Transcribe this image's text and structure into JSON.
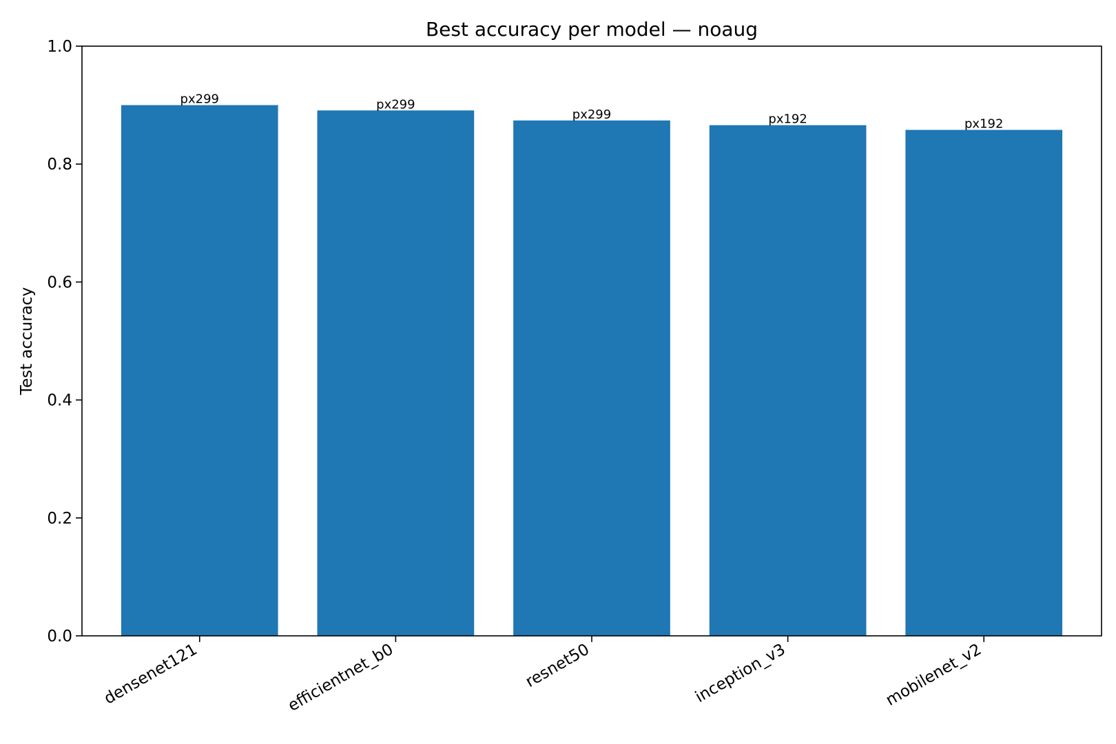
{
  "chart_data": {
    "type": "bar",
    "title": "Best accuracy per model — noaug",
    "xlabel": "",
    "ylabel": "Test accuracy",
    "categories": [
      "densenet121",
      "efficientnet_b0",
      "resnet50",
      "inception_v3",
      "mobilenet_v2"
    ],
    "values": [
      0.9,
      0.891,
      0.874,
      0.866,
      0.858
    ],
    "data_labels": [
      "px299",
      "px299",
      "px299",
      "px192",
      "px192"
    ],
    "ylim": [
      0.0,
      1.0
    ],
    "yticks": [
      0.0,
      0.2,
      0.4,
      0.6,
      0.8,
      1.0
    ],
    "ytick_labels": [
      "0.0",
      "0.2",
      "0.4",
      "0.6",
      "0.8",
      "1.0"
    ],
    "grid": false,
    "legend": "none",
    "bar_color": "#1f77b4"
  }
}
